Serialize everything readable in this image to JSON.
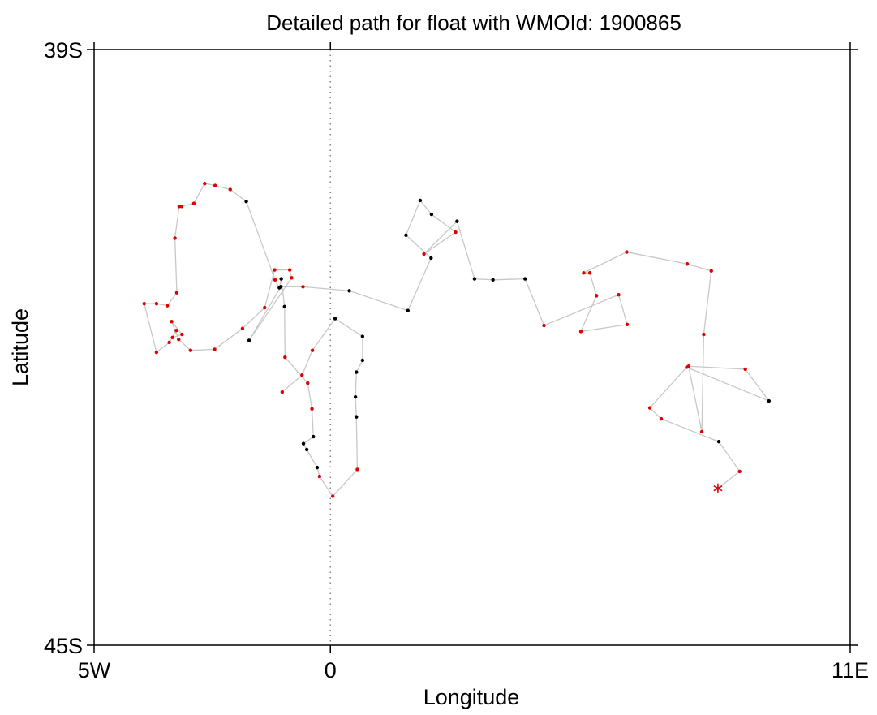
{
  "chart_data": {
    "type": "scatter",
    "title": "Detailed path for float with WMOId: 1900865",
    "xlabel": "Longitude",
    "ylabel": "Latitude",
    "xlim": [
      -5,
      11
    ],
    "ylim": [
      -45,
      -39
    ],
    "x_ticks": [
      {
        "value": -5,
        "label": "5W"
      },
      {
        "value": 0,
        "label": "0"
      },
      {
        "value": 11,
        "label": "11E"
      }
    ],
    "y_ticks": [
      {
        "value": -39,
        "label": "39S"
      },
      {
        "value": -45,
        "label": "45S"
      }
    ],
    "reference_line": {
      "x": 0,
      "style": "dotted",
      "color": "#888888"
    },
    "grid": false,
    "path_color": "#c8c8c8",
    "colors": {
      "black_point": "#000000",
      "red_point": "#e00000",
      "last_position_marker": "#d01010"
    },
    "last_position_marker": "asterisk",
    "path": [
      {
        "lon": 8.2,
        "lat": -43.42,
        "c": "red"
      },
      {
        "lon": 8.66,
        "lat": -43.25,
        "c": "red"
      },
      {
        "lon": 8.22,
        "lat": -42.95,
        "c": "black"
      },
      {
        "lon": 7.0,
        "lat": -42.72,
        "c": "red"
      },
      {
        "lon": 6.76,
        "lat": -42.61,
        "c": "red"
      },
      {
        "lon": 7.54,
        "lat": -42.2,
        "c": "red"
      },
      {
        "lon": 9.28,
        "lat": -42.54,
        "c": "black"
      },
      {
        "lon": 8.78,
        "lat": -42.22,
        "c": "red"
      },
      {
        "lon": 7.58,
        "lat": -42.19,
        "c": "red"
      },
      {
        "lon": 7.86,
        "lat": -42.85,
        "c": "red"
      },
      {
        "lon": 7.9,
        "lat": -41.87,
        "c": "red"
      },
      {
        "lon": 8.06,
        "lat": -41.23,
        "c": "red"
      },
      {
        "lon": 7.55,
        "lat": -41.16,
        "c": "red"
      },
      {
        "lon": 6.27,
        "lat": -41.04,
        "c": "red"
      },
      {
        "lon": 5.36,
        "lat": -41.25,
        "c": "red"
      },
      {
        "lon": 5.49,
        "lat": -41.25,
        "c": "red"
      },
      {
        "lon": 5.63,
        "lat": -41.48,
        "c": "red"
      },
      {
        "lon": 5.3,
        "lat": -41.84,
        "c": "red"
      },
      {
        "lon": 6.28,
        "lat": -41.77,
        "c": "red"
      },
      {
        "lon": 6.1,
        "lat": -41.47,
        "c": "red"
      },
      {
        "lon": 4.52,
        "lat": -41.78,
        "c": "red"
      },
      {
        "lon": 4.12,
        "lat": -41.31,
        "c": "black"
      },
      {
        "lon": 3.44,
        "lat": -41.32,
        "c": "black"
      },
      {
        "lon": 3.05,
        "lat": -41.31,
        "c": "black"
      },
      {
        "lon": 2.68,
        "lat": -40.73,
        "c": "black"
      },
      {
        "lon": 1.98,
        "lat": -41.06,
        "c": "red"
      },
      {
        "lon": 2.65,
        "lat": -40.84,
        "c": "red"
      },
      {
        "lon": 2.14,
        "lat": -40.66,
        "c": "black"
      },
      {
        "lon": 1.9,
        "lat": -40.52,
        "c": "black"
      },
      {
        "lon": 1.6,
        "lat": -40.87,
        "c": "black"
      },
      {
        "lon": 2.13,
        "lat": -41.1,
        "c": "black"
      },
      {
        "lon": 1.64,
        "lat": -41.63,
        "c": "black"
      },
      {
        "lon": 0.4,
        "lat": -41.43,
        "c": "black"
      },
      {
        "lon": -0.58,
        "lat": -41.39,
        "c": "red"
      },
      {
        "lon": -1.05,
        "lat": -41.39,
        "c": "black"
      },
      {
        "lon": -1.72,
        "lat": -41.93,
        "c": "black"
      },
      {
        "lon": -0.82,
        "lat": -41.3,
        "c": "red"
      },
      {
        "lon": -0.86,
        "lat": -41.22,
        "c": "red"
      },
      {
        "lon": -1.18,
        "lat": -41.22,
        "c": "red"
      },
      {
        "lon": -1.39,
        "lat": -41.6,
        "c": "red"
      },
      {
        "lon": -1.86,
        "lat": -41.81,
        "c": "red"
      },
      {
        "lon": -2.45,
        "lat": -42.02,
        "c": "red"
      },
      {
        "lon": -2.96,
        "lat": -42.03,
        "c": "red"
      },
      {
        "lon": -3.21,
        "lat": -41.92,
        "c": "red"
      },
      {
        "lon": -3.36,
        "lat": -41.74,
        "c": "red"
      },
      {
        "lon": -3.14,
        "lat": -41.87,
        "c": "red"
      },
      {
        "lon": -3.34,
        "lat": -41.9,
        "c": "red"
      },
      {
        "lon": -3.26,
        "lat": -41.83,
        "c": "red"
      },
      {
        "lon": -3.41,
        "lat": -41.95,
        "c": "red"
      },
      {
        "lon": -3.68,
        "lat": -42.05,
        "c": "red"
      },
      {
        "lon": -3.94,
        "lat": -41.56,
        "c": "red"
      },
      {
        "lon": -3.68,
        "lat": -41.56,
        "c": "red"
      },
      {
        "lon": -3.45,
        "lat": -41.58,
        "c": "red"
      },
      {
        "lon": -3.25,
        "lat": -41.45,
        "c": "red"
      },
      {
        "lon": -3.29,
        "lat": -40.9,
        "c": "red"
      },
      {
        "lon": -3.2,
        "lat": -40.58,
        "c": "red"
      },
      {
        "lon": -3.15,
        "lat": -40.58,
        "c": "red"
      },
      {
        "lon": -2.89,
        "lat": -40.55,
        "c": "red"
      },
      {
        "lon": -2.66,
        "lat": -40.35,
        "c": "red"
      },
      {
        "lon": -2.44,
        "lat": -40.37,
        "c": "red"
      },
      {
        "lon": -2.12,
        "lat": -40.41,
        "c": "red"
      },
      {
        "lon": -1.78,
        "lat": -40.53,
        "c": "black"
      },
      {
        "lon": -1.17,
        "lat": -41.32,
        "c": "red"
      },
      {
        "lon": -1.08,
        "lat": -41.4,
        "c": "black"
      },
      {
        "lon": -1.04,
        "lat": -41.31,
        "c": "black"
      },
      {
        "lon": -0.97,
        "lat": -41.59,
        "c": "black"
      },
      {
        "lon": -0.96,
        "lat": -42.1,
        "c": "red"
      },
      {
        "lon": -0.48,
        "lat": -42.36,
        "c": "red"
      },
      {
        "lon": -0.39,
        "lat": -42.62,
        "c": "red"
      },
      {
        "lon": -0.36,
        "lat": -42.9,
        "c": "black"
      },
      {
        "lon": -0.57,
        "lat": -42.97,
        "c": "black"
      },
      {
        "lon": -0.5,
        "lat": -43.03,
        "c": "black"
      },
      {
        "lon": -0.28,
        "lat": -43.21,
        "c": "black"
      },
      {
        "lon": -0.23,
        "lat": -43.3,
        "c": "red"
      },
      {
        "lon": 0.05,
        "lat": -43.5,
        "c": "red"
      },
      {
        "lon": 0.57,
        "lat": -43.23,
        "c": "red"
      },
      {
        "lon": 0.55,
        "lat": -42.7,
        "c": "black"
      },
      {
        "lon": 0.53,
        "lat": -42.5,
        "c": "black"
      },
      {
        "lon": 0.55,
        "lat": -42.25,
        "c": "black"
      },
      {
        "lon": 0.68,
        "lat": -42.13,
        "c": "black"
      },
      {
        "lon": 0.68,
        "lat": -41.89,
        "c": "black"
      },
      {
        "lon": 0.1,
        "lat": -41.71,
        "c": "black"
      },
      {
        "lon": -0.38,
        "lat": -42.03,
        "c": "red"
      },
      {
        "lon": -0.6,
        "lat": -42.28,
        "c": "red"
      },
      {
        "lon": -1.02,
        "lat": -42.45,
        "c": "red"
      }
    ]
  }
}
